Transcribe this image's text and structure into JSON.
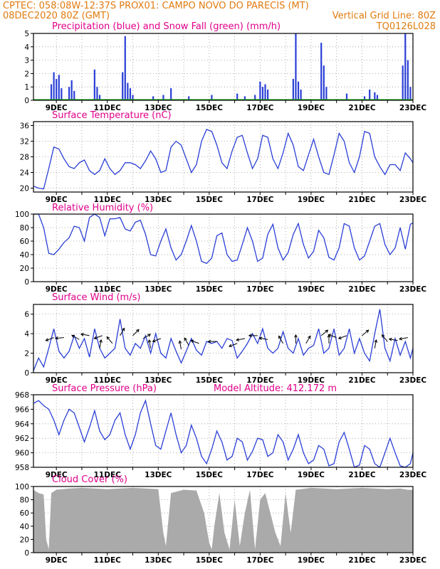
{
  "header": {
    "line1": "CPTEC:   058:08W-12:37S   PROX01: CAMPO NOVO DO PARECIS (MT)",
    "line2_left": "08DEC2020 80Z (GMT)",
    "line2_right": "Vertical Grid Line: 80Z",
    "line3_right": "TQ0126L028"
  },
  "x_axis_labels": [
    "9DEC",
    "11DEC",
    "13DEC",
    "15DEC",
    "17DEC",
    "19DEC",
    "21DEC",
    "23DEC"
  ],
  "colors": {
    "header": "#e07b10",
    "panel_title": "#e0008a",
    "line": "#2a3fd6",
    "rain": "#2a3fd6",
    "snow": "#22aa22",
    "cloud": "#aaaaaa"
  },
  "chart_data": [
    {
      "id": "precip",
      "type": "bar",
      "title": "Precipitation (blue) and Snow Fall (green) (mm/h)",
      "ylim": [
        0,
        5
      ],
      "yticks": [
        "0",
        "1",
        "2",
        "3",
        "4",
        "5"
      ],
      "xlim": [
        8.1,
        23.0
      ],
      "series": [
        {
          "name": "Precipitation",
          "x": [
            8.8,
            8.9,
            9.0,
            9.1,
            9.2,
            9.5,
            9.6,
            9.7,
            10.5,
            10.6,
            10.7,
            11.6,
            11.7,
            11.8,
            11.9,
            12.0,
            12.8,
            13.2,
            13.5,
            14.2,
            15.1,
            16.1,
            16.4,
            16.8,
            17.0,
            17.1,
            17.2,
            17.3,
            18.3,
            18.4,
            18.5,
            18.6,
            19.4,
            19.5,
            19.6,
            20.4,
            21.1,
            21.3,
            21.5,
            21.6,
            22.6,
            22.7,
            22.8,
            22.9
          ],
          "y": [
            1.2,
            2.1,
            1.6,
            1.9,
            0.9,
            1.0,
            1.5,
            0.7,
            2.3,
            1.0,
            0.4,
            2.1,
            4.8,
            1.3,
            0.9,
            0.4,
            0.3,
            0.4,
            0.9,
            0.3,
            0.4,
            0.5,
            0.3,
            0.4,
            1.4,
            1.0,
            1.2,
            0.8,
            1.6,
            5.0,
            1.4,
            0.8,
            4.3,
            2.6,
            1.0,
            0.5,
            0.3,
            0.8,
            0.6,
            0.4,
            2.6,
            5.0,
            3.0,
            1.0
          ]
        },
        {
          "name": "Snow Fall",
          "x": [
            8.1,
            23.0
          ],
          "y": [
            0,
            0
          ]
        }
      ]
    },
    {
      "id": "temp",
      "type": "line",
      "title": "Surface Temperature (nC)",
      "ylim": [
        19,
        37
      ],
      "yticks": [
        "20",
        "24",
        "28",
        "32",
        "36"
      ],
      "xlim": [
        8.1,
        23.0
      ],
      "x": [
        8.1,
        8.3,
        8.5,
        8.7,
        8.9,
        9.1,
        9.3,
        9.5,
        9.7,
        9.9,
        10.1,
        10.3,
        10.5,
        10.7,
        10.9,
        11.1,
        11.3,
        11.5,
        11.7,
        11.9,
        12.1,
        12.3,
        12.5,
        12.7,
        12.9,
        13.1,
        13.3,
        13.5,
        13.7,
        13.9,
        14.1,
        14.3,
        14.5,
        14.7,
        14.9,
        15.1,
        15.3,
        15.5,
        15.7,
        15.9,
        16.1,
        16.3,
        16.5,
        16.7,
        16.9,
        17.1,
        17.3,
        17.5,
        17.7,
        17.9,
        18.1,
        18.3,
        18.5,
        18.7,
        18.9,
        19.1,
        19.3,
        19.5,
        19.7,
        19.9,
        20.1,
        20.3,
        20.5,
        20.7,
        20.9,
        21.1,
        21.3,
        21.5,
        21.7,
        21.9,
        22.1,
        22.3,
        22.5,
        22.7,
        22.9,
        23.0
      ],
      "y": [
        20.5,
        20.0,
        19.8,
        25.0,
        30.5,
        30.0,
        27.5,
        25.5,
        25.0,
        26.5,
        27.2,
        24.5,
        23.5,
        24.5,
        27.5,
        25.0,
        23.5,
        24.5,
        26.5,
        26.5,
        26.0,
        25.0,
        27.0,
        29.5,
        27.5,
        24.0,
        24.5,
        30.5,
        32.0,
        31.0,
        27.5,
        24.0,
        26.0,
        32.0,
        35.0,
        34.5,
        31.0,
        26.5,
        25.0,
        29.5,
        33.0,
        33.5,
        29.0,
        25.0,
        27.5,
        33.5,
        33.0,
        27.5,
        25.0,
        29.0,
        34.0,
        31.0,
        25.5,
        24.5,
        28.5,
        32.5,
        28.0,
        24.0,
        23.5,
        28.5,
        34.0,
        32.0,
        26.5,
        24.0,
        28.0,
        34.5,
        34.0,
        28.0,
        25.5,
        23.5,
        26.0,
        26.0,
        24.5,
        29.0,
        27.5,
        26.5
      ]
    },
    {
      "id": "rh",
      "type": "line",
      "title": "Relative Humidity (%)",
      "ylim": [
        0,
        100
      ],
      "yticks": [
        "0",
        "20",
        "40",
        "60",
        "80",
        "100"
      ],
      "xlim": [
        8.1,
        23.0
      ],
      "x": [
        8.1,
        8.3,
        8.5,
        8.7,
        8.9,
        9.1,
        9.3,
        9.5,
        9.7,
        9.9,
        10.1,
        10.3,
        10.5,
        10.7,
        10.9,
        11.1,
        11.3,
        11.5,
        11.7,
        11.9,
        12.1,
        12.3,
        12.5,
        12.7,
        12.9,
        13.1,
        13.3,
        13.5,
        13.7,
        13.9,
        14.1,
        14.3,
        14.5,
        14.7,
        14.9,
        15.1,
        15.3,
        15.5,
        15.7,
        15.9,
        16.1,
        16.3,
        16.5,
        16.7,
        16.9,
        17.1,
        17.3,
        17.5,
        17.7,
        17.9,
        18.1,
        18.3,
        18.5,
        18.7,
        18.9,
        19.1,
        19.3,
        19.5,
        19.7,
        19.9,
        20.1,
        20.3,
        20.5,
        20.7,
        20.9,
        21.1,
        21.3,
        21.5,
        21.7,
        21.9,
        22.1,
        22.3,
        22.5,
        22.7,
        22.9,
        23.0
      ],
      "y": [
        100,
        100,
        80,
        42,
        40,
        48,
        58,
        65,
        82,
        80,
        60,
        95,
        100,
        95,
        68,
        93,
        93,
        95,
        78,
        75,
        88,
        91,
        70,
        40,
        38,
        60,
        78,
        50,
        32,
        40,
        60,
        83,
        60,
        30,
        27,
        35,
        68,
        72,
        40,
        30,
        32,
        55,
        80,
        60,
        30,
        35,
        70,
        85,
        50,
        32,
        43,
        70,
        86,
        55,
        35,
        45,
        76,
        65,
        36,
        32,
        50,
        86,
        82,
        50,
        32,
        38,
        60,
        82,
        86,
        55,
        40,
        50,
        80,
        48,
        85,
        87
      ]
    },
    {
      "id": "wind",
      "type": "line",
      "title": "Surface Wind (m/s)",
      "ylim": [
        0,
        7
      ],
      "yticks": [
        "0",
        "2",
        "4",
        "6"
      ],
      "xlim": [
        8.1,
        23.0
      ],
      "x": [
        8.1,
        8.3,
        8.5,
        8.7,
        8.9,
        9.1,
        9.3,
        9.5,
        9.7,
        9.9,
        10.1,
        10.3,
        10.5,
        10.7,
        10.9,
        11.1,
        11.3,
        11.5,
        11.7,
        11.9,
        12.1,
        12.3,
        12.5,
        12.7,
        12.9,
        13.1,
        13.3,
        13.5,
        13.7,
        13.9,
        14.1,
        14.3,
        14.5,
        14.7,
        14.9,
        15.1,
        15.3,
        15.5,
        15.7,
        15.9,
        16.1,
        16.3,
        16.5,
        16.7,
        16.9,
        17.1,
        17.3,
        17.5,
        17.7,
        17.9,
        18.1,
        18.3,
        18.5,
        18.7,
        18.9,
        19.1,
        19.3,
        19.5,
        19.7,
        19.9,
        20.1,
        20.3,
        20.5,
        20.7,
        20.9,
        21.1,
        21.3,
        21.5,
        21.7,
        21.9,
        22.1,
        22.3,
        22.5,
        22.7,
        22.9,
        23.0
      ],
      "y": [
        0.2,
        1.5,
        0.6,
        2.5,
        4.5,
        2.2,
        1.5,
        2.2,
        3.8,
        2.5,
        3.5,
        1.6,
        4.5,
        2.5,
        1.5,
        2.0,
        2.5,
        5.5,
        2.5,
        1.8,
        3.0,
        2.5,
        3.8,
        2.0,
        4.0,
        2.0,
        1.5,
        3.5,
        2.2,
        1.0,
        2.2,
        3.5,
        2.3,
        1.8,
        3.2,
        3.0,
        3.2,
        2.5,
        3.5,
        3.3,
        1.5,
        2.2,
        3.0,
        4.0,
        3.0,
        4.5,
        2.5,
        2.0,
        2.5,
        4.2,
        2.5,
        2.0,
        3.5,
        1.8,
        2.5,
        2.8,
        4.5,
        2.0,
        2.5,
        4.5,
        1.8,
        2.5,
        4.5,
        2.0,
        3.5,
        2.0,
        1.2,
        4.0,
        6.5,
        2.5,
        1.2,
        3.5,
        1.8,
        3.2,
        1.5,
        2.5
      ],
      "arrows": [
        {
          "x": 8.9,
          "y": 3.6,
          "angle": 200
        },
        {
          "x": 9.3,
          "y": 3.6,
          "angle": 185
        },
        {
          "x": 9.9,
          "y": 3.4,
          "angle": 150
        },
        {
          "x": 10.3,
          "y": 3.8,
          "angle": 170
        },
        {
          "x": 10.7,
          "y": 2.5,
          "angle": 80
        },
        {
          "x": 10.8,
          "y": 3.8,
          "angle": 200
        },
        {
          "x": 11.2,
          "y": 3.0,
          "angle": 130
        },
        {
          "x": 11.5,
          "y": 3.8,
          "angle": 60
        },
        {
          "x": 12.0,
          "y": 3.8,
          "angle": 45
        },
        {
          "x": 12.4,
          "y": 3.5,
          "angle": 30
        },
        {
          "x": 12.7,
          "y": 2.5,
          "angle": 100
        },
        {
          "x": 13.1,
          "y": 3.5,
          "angle": 200
        },
        {
          "x": 13.9,
          "y": 2.4,
          "angle": 100
        },
        {
          "x": 14.2,
          "y": 2.8,
          "angle": 120
        },
        {
          "x": 14.6,
          "y": 3.0,
          "angle": 160
        },
        {
          "x": 15.3,
          "y": 3.2,
          "angle": 180
        },
        {
          "x": 16.1,
          "y": 3.0,
          "angle": 200
        },
        {
          "x": 16.4,
          "y": 3.5,
          "angle": 190
        },
        {
          "x": 16.9,
          "y": 3.8,
          "angle": 180
        },
        {
          "x": 17.3,
          "y": 3.4,
          "angle": 170
        },
        {
          "x": 17.9,
          "y": 3.0,
          "angle": 120
        },
        {
          "x": 18.4,
          "y": 3.0,
          "angle": 90
        },
        {
          "x": 18.8,
          "y": 3.0,
          "angle": 60
        },
        {
          "x": 19.4,
          "y": 3.8,
          "angle": 40
        },
        {
          "x": 19.7,
          "y": 3.0,
          "angle": 90
        },
        {
          "x": 20.0,
          "y": 3.6,
          "angle": 160
        },
        {
          "x": 20.4,
          "y": 3.8,
          "angle": 200
        },
        {
          "x": 21.0,
          "y": 3.8,
          "angle": 40
        },
        {
          "x": 21.5,
          "y": 2.5,
          "angle": 80
        },
        {
          "x": 22.0,
          "y": 3.2,
          "angle": 130
        },
        {
          "x": 22.4,
          "y": 3.3,
          "angle": 170
        },
        {
          "x": 22.8,
          "y": 3.6,
          "angle": 190
        }
      ]
    },
    {
      "id": "pressure",
      "type": "line",
      "title": "Surface Pressure (hPa)",
      "annotation": "Model Altitude: 412.172  m",
      "ylim": [
        958,
        968
      ],
      "yticks": [
        "958",
        "960",
        "962",
        "964",
        "966",
        "968"
      ],
      "xlim": [
        8.1,
        23.0
      ],
      "x": [
        8.1,
        8.3,
        8.5,
        8.7,
        8.9,
        9.1,
        9.3,
        9.5,
        9.7,
        9.9,
        10.1,
        10.3,
        10.5,
        10.7,
        10.9,
        11.1,
        11.3,
        11.5,
        11.7,
        11.9,
        12.1,
        12.3,
        12.5,
        12.7,
        12.9,
        13.1,
        13.3,
        13.5,
        13.7,
        13.9,
        14.1,
        14.3,
        14.5,
        14.7,
        14.9,
        15.1,
        15.3,
        15.5,
        15.7,
        15.9,
        16.1,
        16.3,
        16.5,
        16.7,
        16.9,
        17.1,
        17.3,
        17.5,
        17.7,
        17.9,
        18.1,
        18.3,
        18.5,
        18.7,
        18.9,
        19.1,
        19.3,
        19.5,
        19.7,
        19.9,
        20.1,
        20.3,
        20.5,
        20.7,
        20.9,
        21.1,
        21.3,
        21.5,
        21.7,
        21.9,
        22.1,
        22.3,
        22.5,
        22.7,
        22.9,
        23.0
      ],
      "y": [
        966.8,
        967.2,
        966.5,
        966.0,
        964.5,
        962.5,
        964.5,
        966.0,
        965.5,
        963.5,
        961.5,
        963.5,
        965.8,
        963.0,
        961.8,
        962.5,
        964.5,
        965.5,
        962.5,
        960.5,
        962.5,
        965.5,
        967.2,
        964.0,
        961.0,
        960.5,
        963.0,
        965.5,
        962.5,
        960.0,
        961.0,
        963.8,
        962.0,
        959.5,
        958.5,
        960.5,
        963.0,
        961.5,
        959.0,
        959.5,
        962.0,
        961.5,
        959.0,
        960.2,
        962.0,
        961.8,
        959.5,
        960.0,
        962.5,
        961.5,
        959.0,
        960.5,
        962.5,
        960.0,
        958.5,
        959.0,
        961.0,
        960.5,
        958.2,
        958.5,
        961.5,
        962.8,
        960.5,
        958.0,
        958.3,
        961.0,
        960.5,
        958.5,
        958.0,
        960.0,
        962.0,
        960.0,
        958.2,
        958.0,
        958.5,
        960.0
      ]
    },
    {
      "id": "cloud",
      "type": "area",
      "title": "Cloud Cover (%)",
      "ylim": [
        0,
        100
      ],
      "yticks": [
        "0",
        "20",
        "40",
        "60",
        "80",
        "100"
      ],
      "xlim": [
        8.1,
        23.0
      ],
      "x": [
        8.1,
        8.3,
        8.5,
        8.6,
        8.7,
        8.8,
        9.0,
        9.5,
        10.0,
        10.5,
        11.0,
        11.5,
        12.0,
        12.5,
        13.0,
        13.2,
        13.3,
        13.5,
        13.7,
        14.0,
        14.5,
        14.8,
        15.0,
        15.1,
        15.2,
        15.4,
        15.6,
        15.8,
        16.0,
        16.2,
        16.4,
        16.6,
        16.8,
        17.0,
        17.2,
        17.4,
        17.6,
        17.8,
        18.0,
        18.2,
        18.4,
        18.6,
        18.8,
        19.0,
        19.5,
        20.0,
        20.5,
        21.0,
        21.5,
        22.0,
        22.5,
        22.8,
        23.0
      ],
      "y": [
        95,
        90,
        88,
        20,
        5,
        90,
        95,
        97,
        98,
        97,
        96,
        97,
        98,
        97,
        96,
        30,
        10,
        90,
        92,
        95,
        94,
        60,
        15,
        5,
        40,
        90,
        30,
        5,
        80,
        10,
        60,
        95,
        5,
        80,
        90,
        60,
        30,
        10,
        90,
        30,
        95,
        96,
        97,
        98,
        97,
        96,
        97,
        98,
        97,
        96,
        97,
        95,
        95
      ]
    }
  ]
}
